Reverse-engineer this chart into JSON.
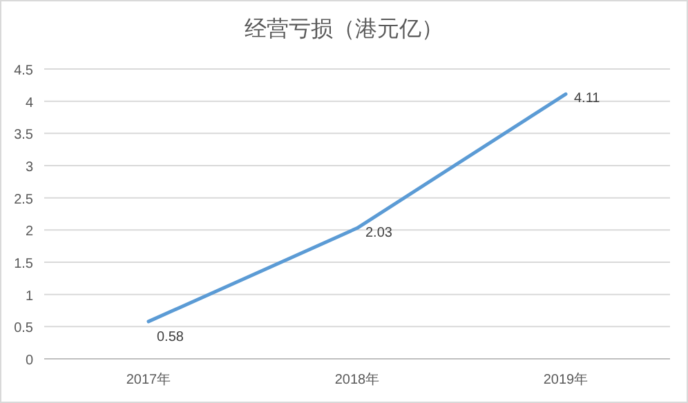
{
  "chart_data": {
    "type": "line",
    "title": "经营亏损（港元亿）",
    "categories": [
      "2017年",
      "2018年",
      "2019年"
    ],
    "values": [
      0.58,
      2.03,
      4.11
    ],
    "color": "#5b9bd5",
    "ylim": [
      0,
      4.5
    ],
    "yticks": [
      0,
      0.5,
      1,
      1.5,
      2,
      2.5,
      3,
      3.5,
      4,
      4.5
    ],
    "grid": "y",
    "data_labels": true,
    "marker": "none",
    "line_style": "solid"
  }
}
